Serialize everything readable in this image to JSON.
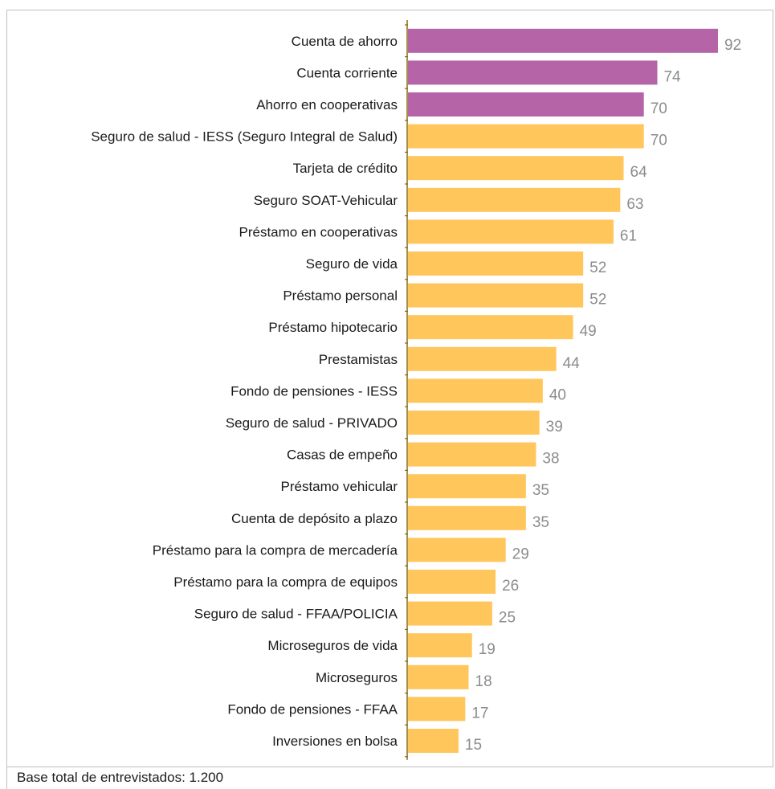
{
  "chart_data": {
    "type": "bar",
    "orientation": "horizontal",
    "title": "",
    "xlabel": "",
    "ylabel": "",
    "grid": false,
    "colors": {
      "highlight": "#b565a7",
      "default": "#ffc65c",
      "value_label": "#8c8c8c",
      "axis": "#8b6914"
    },
    "xlim": [
      0,
      92
    ],
    "categories": [
      "Cuenta de ahorro",
      "Cuenta corriente",
      "Ahorro en cooperativas",
      "Seguro de salud - IESS (Seguro Integral de Salud)",
      "Tarjeta de crédito",
      "Seguro SOAT-Vehicular",
      "Préstamo en cooperativas",
      "Seguro de vida",
      "Préstamo personal",
      "Préstamo hipotecario",
      "Prestamistas",
      "Fondo de pensiones - IESS",
      "Seguro de salud - PRIVADO",
      "Casas de empeño",
      "Préstamo vehicular",
      "Cuenta de depósito a plazo",
      "Préstamo para la compra de mercadería",
      "Préstamo para la compra de equipos",
      "Seguro de salud - FFAA/POLICIA",
      "Microseguros de vida",
      "Microseguros",
      "Fondo de pensiones - FFAA",
      "Inversiones en bolsa"
    ],
    "values": [
      92,
      74,
      70,
      70,
      64,
      63,
      61,
      52,
      52,
      49,
      44,
      40,
      39,
      38,
      35,
      35,
      29,
      26,
      25,
      19,
      18,
      17,
      15
    ],
    "highlighted": [
      true,
      true,
      true,
      false,
      false,
      false,
      false,
      false,
      false,
      false,
      false,
      false,
      false,
      false,
      false,
      false,
      false,
      false,
      false,
      false,
      false,
      false,
      false
    ]
  },
  "footer": {
    "note": "Base total de entrevistados: 1.200"
  }
}
